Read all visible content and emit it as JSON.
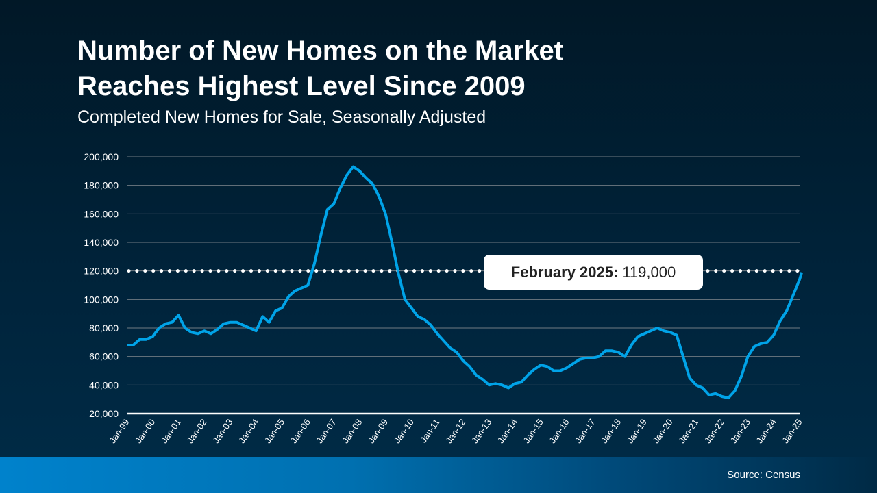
{
  "title_line1": "Number of New Homes on the Market",
  "title_line2": "Reaches Highest Level Since 2009",
  "subtitle": "Completed New Homes for Sale, Seasonally Adjusted",
  "source": "Source: Census",
  "callout": {
    "label": "February 2025:",
    "value": "119,000"
  },
  "colors": {
    "line": "#00a3e8",
    "background": "#01192a",
    "footer": "#0082cc",
    "reference_line": "#ffffff"
  },
  "chart_data": {
    "type": "line",
    "title": "Number of New Homes on the Market Reaches Highest Level Since 2009",
    "subtitle": "Completed New Homes for Sale, Seasonally Adjusted",
    "xlabel": "",
    "ylabel": "",
    "ylim": [
      20000,
      200000
    ],
    "yticks": [
      20000,
      40000,
      60000,
      80000,
      100000,
      120000,
      140000,
      160000,
      180000,
      200000
    ],
    "ytick_labels": [
      "20,000",
      "40,000",
      "60,000",
      "80,000",
      "100,000",
      "120,000",
      "140,000",
      "160,000",
      "180,000",
      "200,000"
    ],
    "xtick_labels": [
      "Jan-99",
      "Jan-00",
      "Jan-01",
      "Jan-02",
      "Jan-03",
      "Jan-04",
      "Jan-05",
      "Jan-06",
      "Jan-07",
      "Jan-08",
      "Jan-09",
      "Jan-10",
      "Jan-11",
      "Jan-12",
      "Jan-13",
      "Jan-14",
      "Jan-15",
      "Jan-16",
      "Jan-17",
      "Jan-18",
      "Jan-19",
      "Jan-20",
      "Jan-21",
      "Jan-22",
      "Jan-23",
      "Jan-24",
      "Jan-25"
    ],
    "grid": "horizontal",
    "reference_line": {
      "value": 119000,
      "style": "dotted",
      "label": "February 2025: 119,000"
    },
    "x": [
      "1999-01",
      "1999-04",
      "1999-07",
      "1999-10",
      "2000-01",
      "2000-04",
      "2000-07",
      "2000-10",
      "2001-01",
      "2001-04",
      "2001-07",
      "2001-10",
      "2002-01",
      "2002-04",
      "2002-07",
      "2002-10",
      "2003-01",
      "2003-04",
      "2003-07",
      "2003-10",
      "2004-01",
      "2004-04",
      "2004-07",
      "2004-10",
      "2005-01",
      "2005-04",
      "2005-07",
      "2005-10",
      "2006-01",
      "2006-04",
      "2006-07",
      "2006-10",
      "2007-01",
      "2007-04",
      "2007-07",
      "2007-10",
      "2008-01",
      "2008-04",
      "2008-07",
      "2008-10",
      "2009-01",
      "2009-04",
      "2009-07",
      "2009-10",
      "2010-01",
      "2010-04",
      "2010-07",
      "2010-10",
      "2011-01",
      "2011-04",
      "2011-07",
      "2011-10",
      "2012-01",
      "2012-04",
      "2012-07",
      "2012-10",
      "2013-01",
      "2013-04",
      "2013-07",
      "2013-10",
      "2014-01",
      "2014-04",
      "2014-07",
      "2014-10",
      "2015-01",
      "2015-04",
      "2015-07",
      "2015-10",
      "2016-01",
      "2016-04",
      "2016-07",
      "2016-10",
      "2017-01",
      "2017-04",
      "2017-07",
      "2017-10",
      "2018-01",
      "2018-04",
      "2018-07",
      "2018-10",
      "2019-01",
      "2019-04",
      "2019-07",
      "2019-10",
      "2020-01",
      "2020-04",
      "2020-07",
      "2020-10",
      "2021-01",
      "2021-04",
      "2021-07",
      "2021-10",
      "2022-01",
      "2022-04",
      "2022-07",
      "2022-10",
      "2023-01",
      "2023-04",
      "2023-07",
      "2023-10",
      "2024-01",
      "2024-04",
      "2024-07",
      "2024-10",
      "2025-01",
      "2025-02"
    ],
    "series": [
      {
        "values": [
          68000,
          68000,
          72000,
          72000,
          74000,
          80000,
          83000,
          84000,
          89000,
          80000,
          77000,
          76000,
          78000,
          76000,
          79000,
          83000,
          84000,
          84000,
          82000,
          80000,
          78000,
          88000,
          84000,
          92000,
          94000,
          102000,
          106000,
          108000,
          110000,
          125000,
          145000,
          163000,
          167000,
          178000,
          187000,
          193000,
          190000,
          185000,
          181000,
          172000,
          160000,
          140000,
          118000,
          100000,
          94000,
          88000,
          86000,
          82000,
          76000,
          71000,
          66000,
          63000,
          57000,
          53000,
          47000,
          44000,
          40000,
          41000,
          40000,
          38000,
          41000,
          42000,
          47000,
          51000,
          54000,
          53000,
          50000,
          50000,
          52000,
          55000,
          58000,
          59000,
          59000,
          60000,
          64000,
          64000,
          63000,
          60000,
          68000,
          74000,
          76000,
          78000,
          80000,
          78000,
          77000,
          75000,
          60000,
          45000,
          40000,
          38000,
          33000,
          34000,
          32000,
          31000,
          36000,
          46000,
          60000,
          67000,
          69000,
          70000,
          75000,
          85000,
          92000,
          103000,
          114000,
          119000
        ]
      }
    ]
  }
}
